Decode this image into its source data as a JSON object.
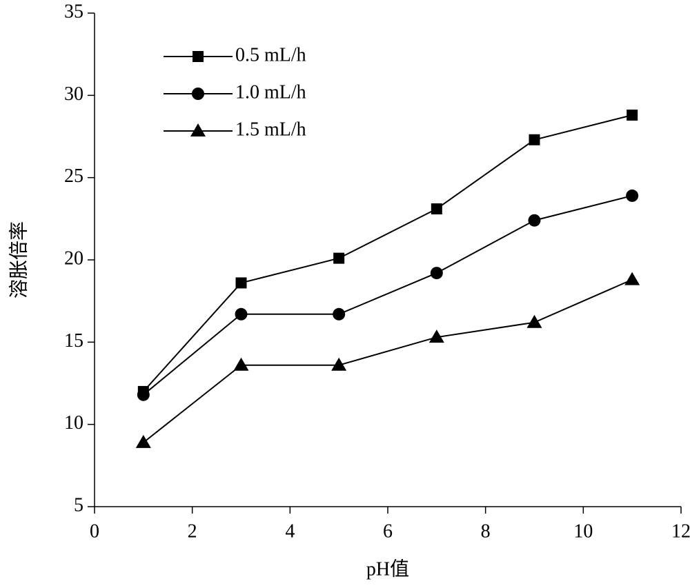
{
  "chart_data": {
    "type": "line",
    "x_label": "pH值",
    "y_label": "溶胀倍率",
    "x": [
      1,
      3,
      5,
      7,
      9,
      11
    ],
    "series": [
      {
        "name": "0.5 mL/h",
        "color": "#000000",
        "marker": "square",
        "values": [
          12.0,
          18.6,
          20.1,
          23.1,
          27.3,
          28.8
        ]
      },
      {
        "name": "1.0 mL/h",
        "color": "#000000",
        "marker": "circle",
        "values": [
          11.8,
          16.7,
          16.7,
          19.2,
          22.4,
          23.9
        ]
      },
      {
        "name": "1.5 mL/h",
        "color": "#000000",
        "marker": "triangle",
        "values": [
          8.9,
          13.6,
          13.6,
          15.3,
          16.2,
          18.8
        ]
      }
    ],
    "xlim": [
      0,
      12
    ],
    "xticks": [
      0,
      2,
      4,
      6,
      8,
      10,
      12
    ],
    "ylim": [
      5,
      35
    ],
    "yticks": [
      5,
      10,
      15,
      20,
      25,
      30,
      35
    ],
    "legend": "upper left",
    "grid": false
  }
}
